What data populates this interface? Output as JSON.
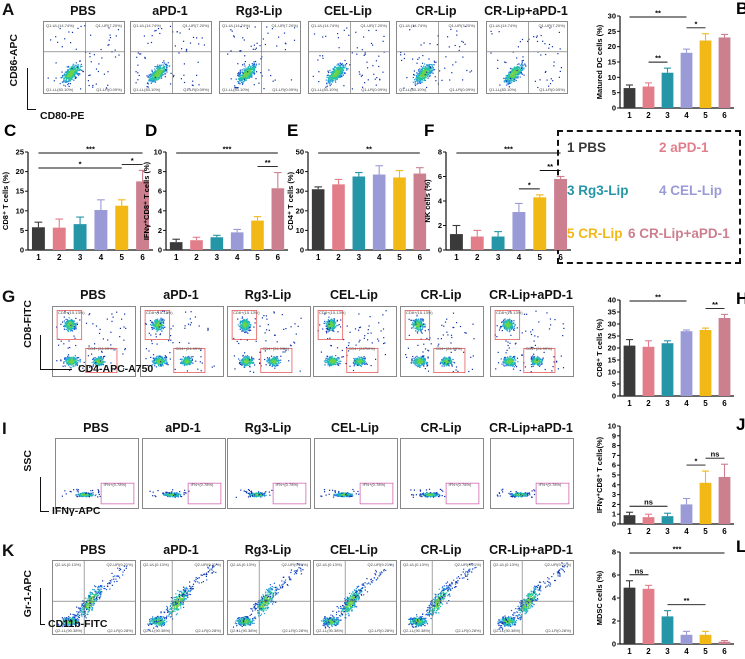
{
  "groups": [
    "PBS",
    "aPD-1",
    "Rg3-Lip",
    "CEL-Lip",
    "CR-Lip",
    "CR-Lip+aPD-1"
  ],
  "palette": [
    "#3a3a3a",
    "#e27e8a",
    "#2596a8",
    "#9a9ad6",
    "#f2b816",
    "#cc7f8e"
  ],
  "panels": {
    "A": {
      "letter": "A",
      "yaxis": "CD86-APC",
      "xaxis": "CD80-PE"
    },
    "G": {
      "letter": "G",
      "yaxis": "CD8-FITC",
      "xaxis": "CD4-APC-A750"
    },
    "I": {
      "letter": "I",
      "yaxis": "SSC",
      "xaxis": "IFNγ-APC"
    },
    "K": {
      "letter": "K",
      "yaxis": "Gr-1-APC",
      "xaxis": "CD11b-FITC"
    }
  },
  "legend": {
    "items": [
      "1 PBS",
      "2 aPD-1",
      "3 Rg3-Lip",
      "4 CEL-Lip",
      "5 CR-Lip",
      "6 CR-Lip+aPD-1"
    ]
  },
  "flow_corner_labels": {
    "A": [
      "Q1-UL(14.74%)",
      "Q1-UR(7.20%)",
      "Q1-LL(83.10%)",
      "Q1-LR(0.09%)"
    ],
    "G": [
      "CD8+(15.13%)",
      "CD4+(24.99%)"
    ],
    "I": [
      "IFN+(0.78%)"
    ],
    "K": [
      "Q2-UL(0.13%)",
      "Q2-UR(9.21%)",
      "Q2-LL(90.38%)",
      "Q2-LR(0.28%)"
    ]
  },
  "chart_data": [
    {
      "id": "B",
      "letter": "B",
      "type": "bar",
      "ylabel": "Matured DC cells (%)",
      "ylim": [
        0,
        30
      ],
      "yticks": [
        0,
        5,
        10,
        15,
        20,
        25,
        30
      ],
      "categories": [
        "1",
        "2",
        "3",
        "4",
        "5",
        "6"
      ],
      "values": [
        6.5,
        7,
        11.5,
        18,
        22,
        23
      ],
      "errors": [
        1,
        1.2,
        1.5,
        1.2,
        2.2,
        1
      ],
      "sig": [
        {
          "from": 1,
          "to": 4,
          "label": "**"
        },
        {
          "from": 2,
          "to": 3,
          "label": "**"
        },
        {
          "from": 4,
          "to": 5,
          "label": "*"
        }
      ]
    },
    {
      "id": "C",
      "letter": "C",
      "type": "bar",
      "ylabel": "CD8⁺ T cells (%)",
      "ylim": [
        0,
        25
      ],
      "yticks": [
        0,
        5,
        10,
        15,
        20,
        25
      ],
      "categories": [
        "1",
        "2",
        "3",
        "4",
        "5",
        "6"
      ],
      "values": [
        5.8,
        5.7,
        6.6,
        10.2,
        11.3,
        17.5
      ],
      "errors": [
        1.3,
        2.2,
        1.8,
        2.6,
        1.5,
        2.8
      ],
      "sig": [
        {
          "from": 1,
          "to": 6,
          "label": "***"
        },
        {
          "from": 1,
          "to": 5,
          "label": "*"
        },
        {
          "from": 5,
          "to": 6,
          "label": "*"
        }
      ]
    },
    {
      "id": "D",
      "letter": "D",
      "type": "bar",
      "ylabel": "IFNγ⁺CD8⁺ T cells (%)",
      "ylim": [
        0,
        10
      ],
      "yticks": [
        0,
        2,
        4,
        6,
        8,
        10
      ],
      "categories": [
        "1",
        "2",
        "3",
        "4",
        "5",
        "6"
      ],
      "values": [
        0.8,
        1,
        1.3,
        1.8,
        3,
        6.3
      ],
      "errors": [
        0.3,
        0.3,
        0.2,
        0.3,
        0.4,
        1.6
      ],
      "sig": [
        {
          "from": 1,
          "to": 6,
          "label": "***"
        },
        {
          "from": 5,
          "to": 6,
          "label": "**"
        }
      ]
    },
    {
      "id": "E",
      "letter": "E",
      "type": "bar",
      "ylabel": "CD4⁺ T cells (%)",
      "ylim": [
        0,
        50
      ],
      "yticks": [
        0,
        10,
        20,
        30,
        40,
        50
      ],
      "categories": [
        "1",
        "2",
        "3",
        "4",
        "5",
        "6"
      ],
      "values": [
        31,
        33.5,
        37.5,
        38.5,
        37,
        39
      ],
      "errors": [
        1.2,
        2.5,
        2,
        4.5,
        3.5,
        3
      ],
      "sig": [
        {
          "from": 1,
          "to": 6,
          "label": "**"
        }
      ]
    },
    {
      "id": "F",
      "letter": "F",
      "type": "bar",
      "ylabel": "NK cells (%)",
      "ylim": [
        0,
        8
      ],
      "yticks": [
        0,
        2,
        4,
        6,
        8
      ],
      "categories": [
        "1",
        "2",
        "3",
        "4",
        "5",
        "6"
      ],
      "values": [
        1.3,
        1.1,
        1.1,
        3.1,
        4.3,
        5.8
      ],
      "errors": [
        0.7,
        0.5,
        0.4,
        0.7,
        0.2,
        0.2
      ],
      "sig": [
        {
          "from": 1,
          "to": 6,
          "label": "***"
        },
        {
          "from": 5,
          "to": 6,
          "label": "**"
        },
        {
          "from": 4,
          "to": 5,
          "label": "*"
        }
      ]
    },
    {
      "id": "H",
      "letter": "H",
      "type": "bar",
      "ylabel": "CD8⁺ T cells (%)",
      "ylim": [
        0,
        40
      ],
      "yticks": [
        0,
        5,
        10,
        15,
        20,
        25,
        30,
        35,
        40
      ],
      "categories": [
        "1",
        "2",
        "3",
        "4",
        "5",
        "6"
      ],
      "values": [
        21,
        20.5,
        22,
        27,
        27.5,
        32.5
      ],
      "errors": [
        2.5,
        2.5,
        1,
        0.5,
        0.8,
        1.5
      ],
      "sig": [
        {
          "from": 1,
          "to": 4,
          "label": "**"
        },
        {
          "from": 5,
          "to": 6,
          "label": "**"
        }
      ]
    },
    {
      "id": "J",
      "letter": "J",
      "type": "bar",
      "ylabel": "IFNγ⁺CD8⁺ T cells(%)",
      "ylim": [
        0,
        10
      ],
      "yticks": [
        0,
        1,
        2,
        3,
        4,
        5,
        6,
        7,
        8,
        9,
        10
      ],
      "categories": [
        "1",
        "2",
        "3",
        "4",
        "5",
        "6"
      ],
      "values": [
        0.9,
        0.7,
        0.8,
        2,
        4.2,
        4.8
      ],
      "errors": [
        0.3,
        0.3,
        0.3,
        0.6,
        1.2,
        1.3
      ],
      "sig": [
        {
          "from": 1,
          "to": 3,
          "label": "ns"
        },
        {
          "from": 4,
          "to": 5,
          "label": "*"
        },
        {
          "from": 5,
          "to": 6,
          "label": "ns"
        }
      ]
    },
    {
      "id": "L",
      "letter": "L",
      "type": "bar",
      "ylabel": "MDSC cells (%)",
      "ylim": [
        0,
        8
      ],
      "yticks": [
        0,
        2,
        4,
        6,
        8
      ],
      "categories": [
        "1",
        "2",
        "3",
        "4",
        "5",
        "6"
      ],
      "values": [
        4.9,
        4.8,
        2.4,
        0.8,
        0.8,
        0.2
      ],
      "errors": [
        0.6,
        0.3,
        0.5,
        0.3,
        0.3,
        0.1
      ],
      "sig": [
        {
          "from": 1,
          "to": 6,
          "label": "***"
        },
        {
          "from": 1,
          "to": 2,
          "label": "ns"
        },
        {
          "from": 3,
          "to": 5,
          "label": "**"
        }
      ]
    }
  ]
}
